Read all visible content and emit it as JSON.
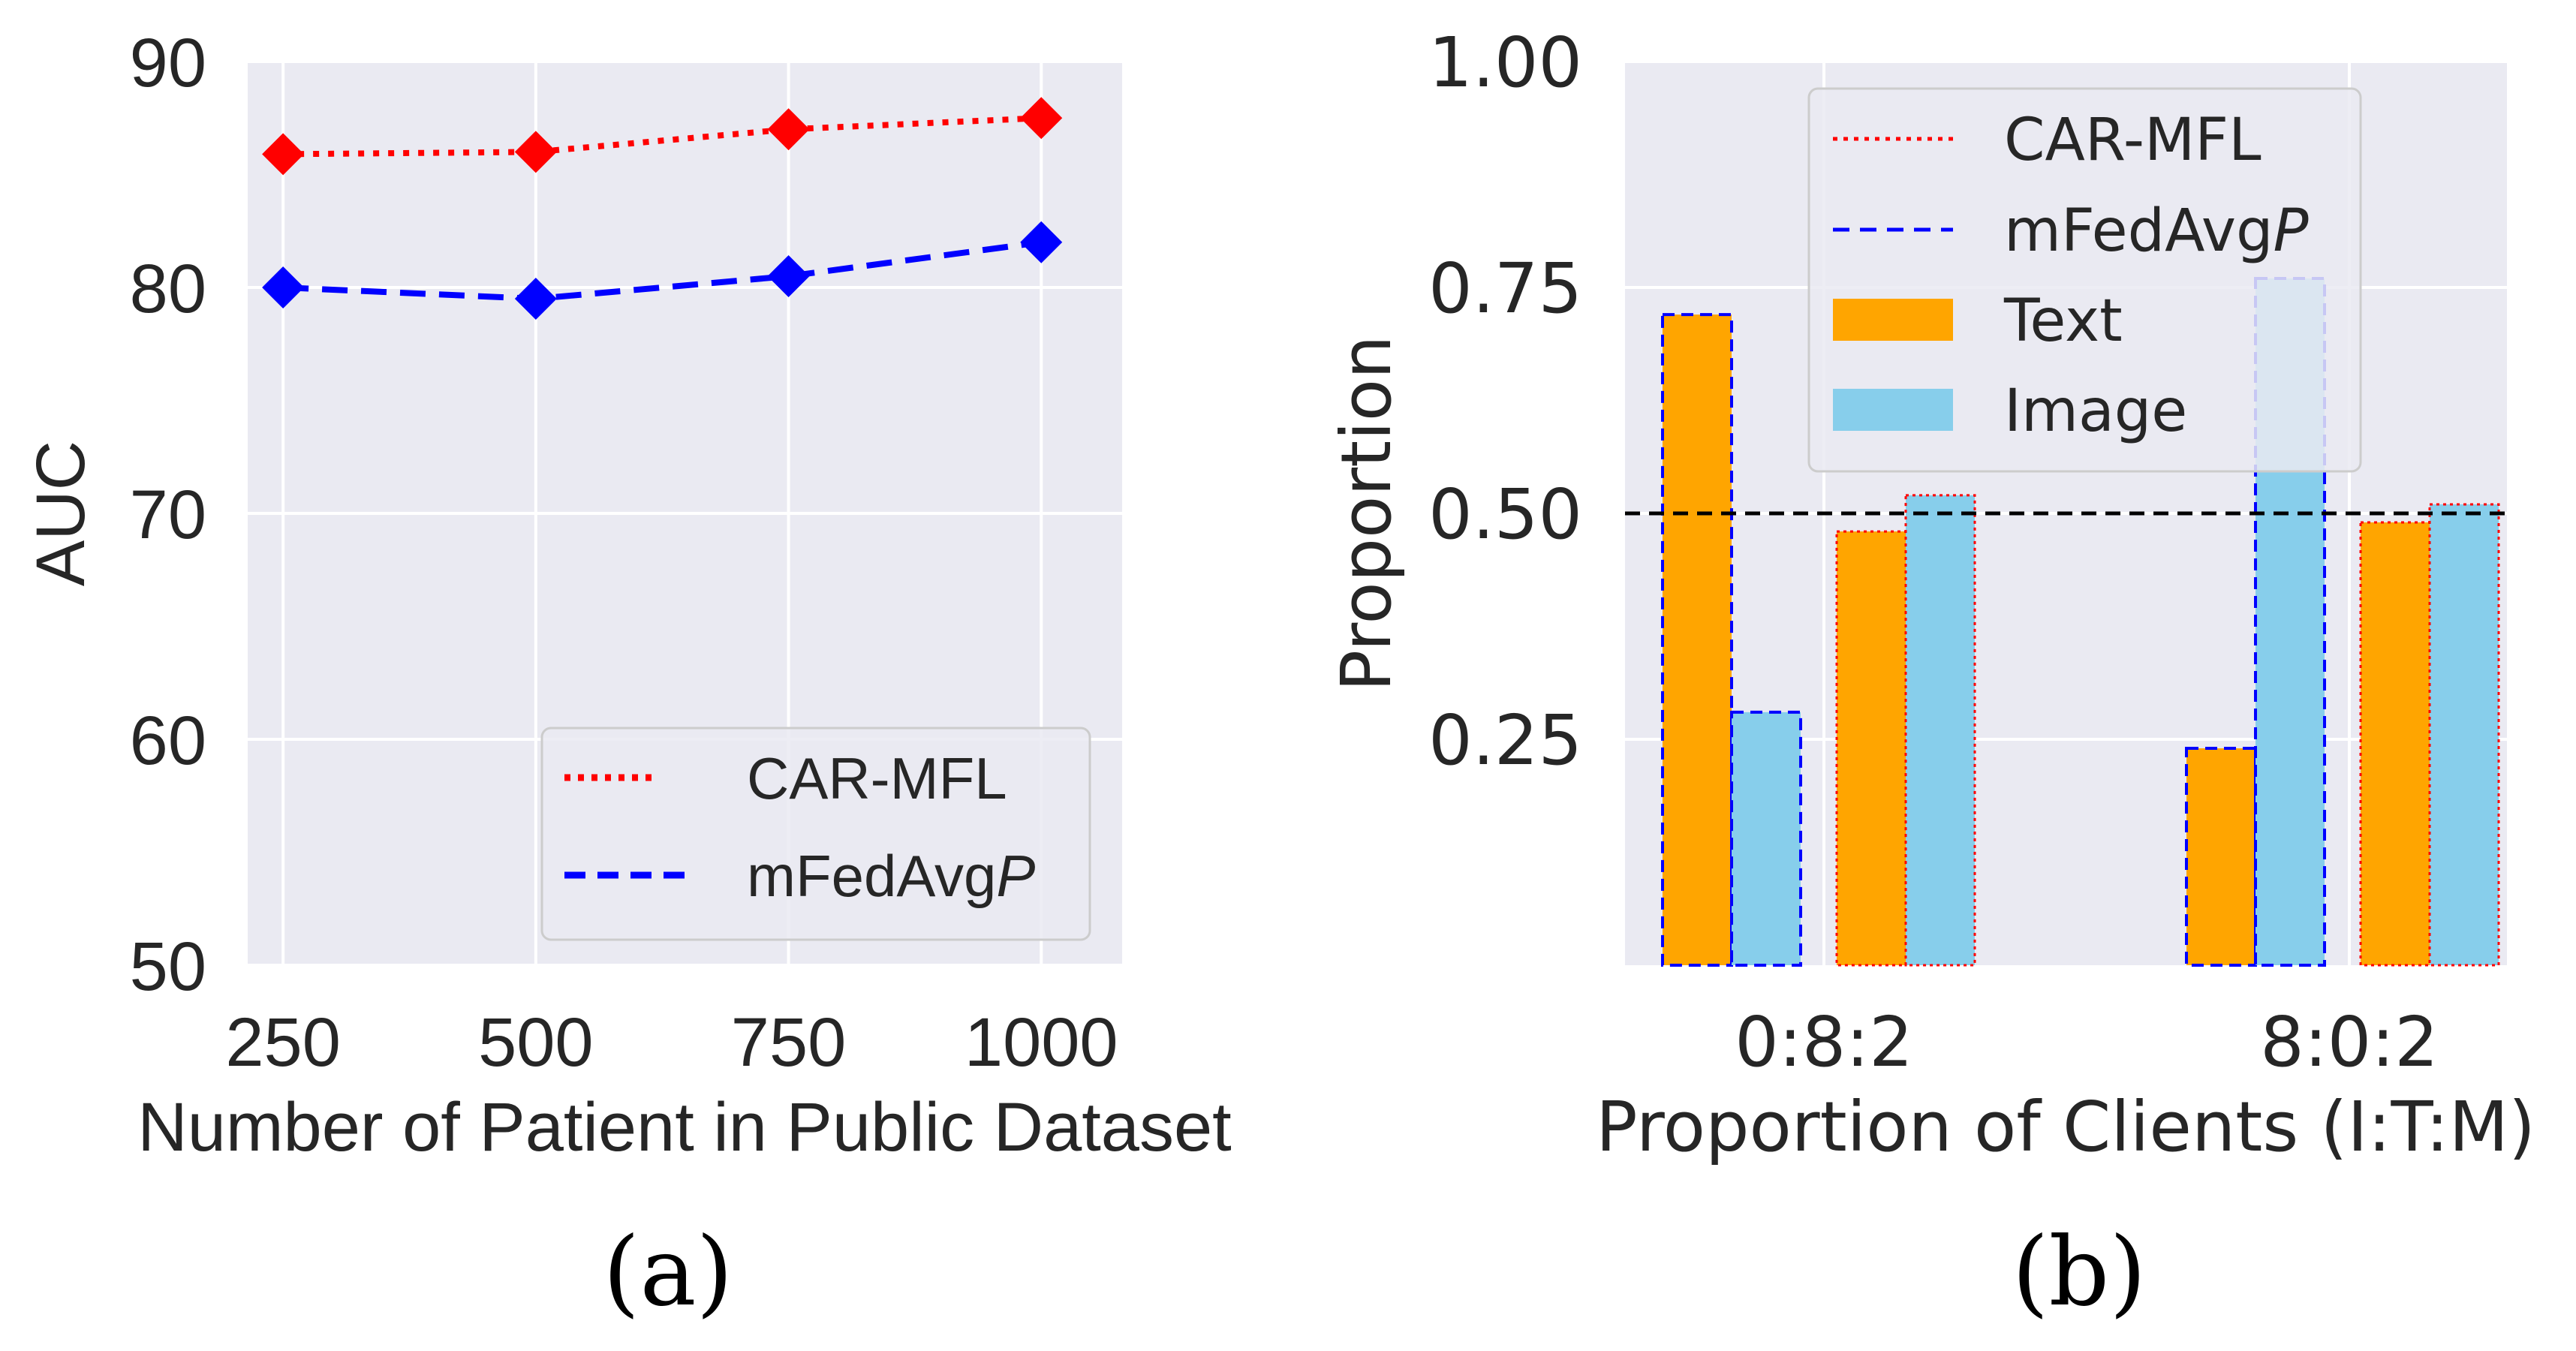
{
  "chart_data": [
    {
      "type": "line",
      "title": "",
      "xlabel": "Number of Patient in Public Dataset",
      "ylabel": "AUC",
      "caption": "(a)",
      "x": [
        250,
        500,
        750,
        1000
      ],
      "x_tick_labels": [
        "250",
        "500",
        "750",
        "1000"
      ],
      "ylim": [
        50,
        90
      ],
      "y_ticks": [
        50,
        60,
        70,
        80,
        90
      ],
      "y_tick_labels": [
        "50",
        "60",
        "70",
        "80",
        "90"
      ],
      "grid": true,
      "legend": "lower-right",
      "series": [
        {
          "name": "CAR-MFL",
          "name_main": "CAR-MFL",
          "name_italic": "",
          "values": [
            85.9,
            86.0,
            87.0,
            87.5
          ],
          "color": "#ff0000",
          "style": "dotted",
          "marker": "diamond"
        },
        {
          "name": "mFedAvgP",
          "name_main": "mFedAvg",
          "name_italic": "P",
          "values": [
            80.0,
            79.5,
            80.5,
            82.0
          ],
          "color": "#0000ff",
          "style": "dashed",
          "marker": "diamond"
        }
      ]
    },
    {
      "type": "bar",
      "title": "",
      "xlabel": "Proportion of Clients (I:T:M)",
      "ylabel": "Proportion",
      "caption": "(b)",
      "categories": [
        "0:8:2",
        "8:0:2"
      ],
      "ylim": [
        0,
        1.0
      ],
      "y_ticks": [
        0.25,
        0.5,
        0.75,
        1.0
      ],
      "y_tick_labels": [
        "0.25",
        "0.50",
        "0.75",
        "1.00"
      ],
      "grid": true,
      "legend": "top-center",
      "reference_line": 0.5,
      "groups": [
        {
          "method": "mFedAvgP",
          "category": "0:8:2",
          "text": 0.72,
          "image": 0.28
        },
        {
          "method": "CAR-MFL",
          "category": "0:8:2",
          "text": 0.48,
          "image": 0.52
        },
        {
          "method": "mFedAvgP",
          "category": "8:0:2",
          "text": 0.24,
          "image": 0.76
        },
        {
          "method": "CAR-MFL",
          "category": "8:0:2",
          "text": 0.49,
          "image": 0.51
        }
      ],
      "legend_entries": [
        {
          "main": "CAR-MFL",
          "italic": "",
          "kind": "line",
          "color": "#ff0000",
          "style": "dotted"
        },
        {
          "main": "mFedAvg",
          "italic": "P",
          "kind": "line",
          "color": "#0000ff",
          "style": "dashed"
        },
        {
          "main": "Text",
          "italic": "",
          "kind": "patch",
          "color": "#ffa500"
        },
        {
          "main": "Image",
          "italic": "",
          "kind": "patch",
          "color": "#87ceeb"
        }
      ],
      "colors": {
        "text": "#ffa500",
        "image": "#87ceeb",
        "car_edge": "#ff0000",
        "fedavg_edge": "#0000ff"
      }
    }
  ]
}
